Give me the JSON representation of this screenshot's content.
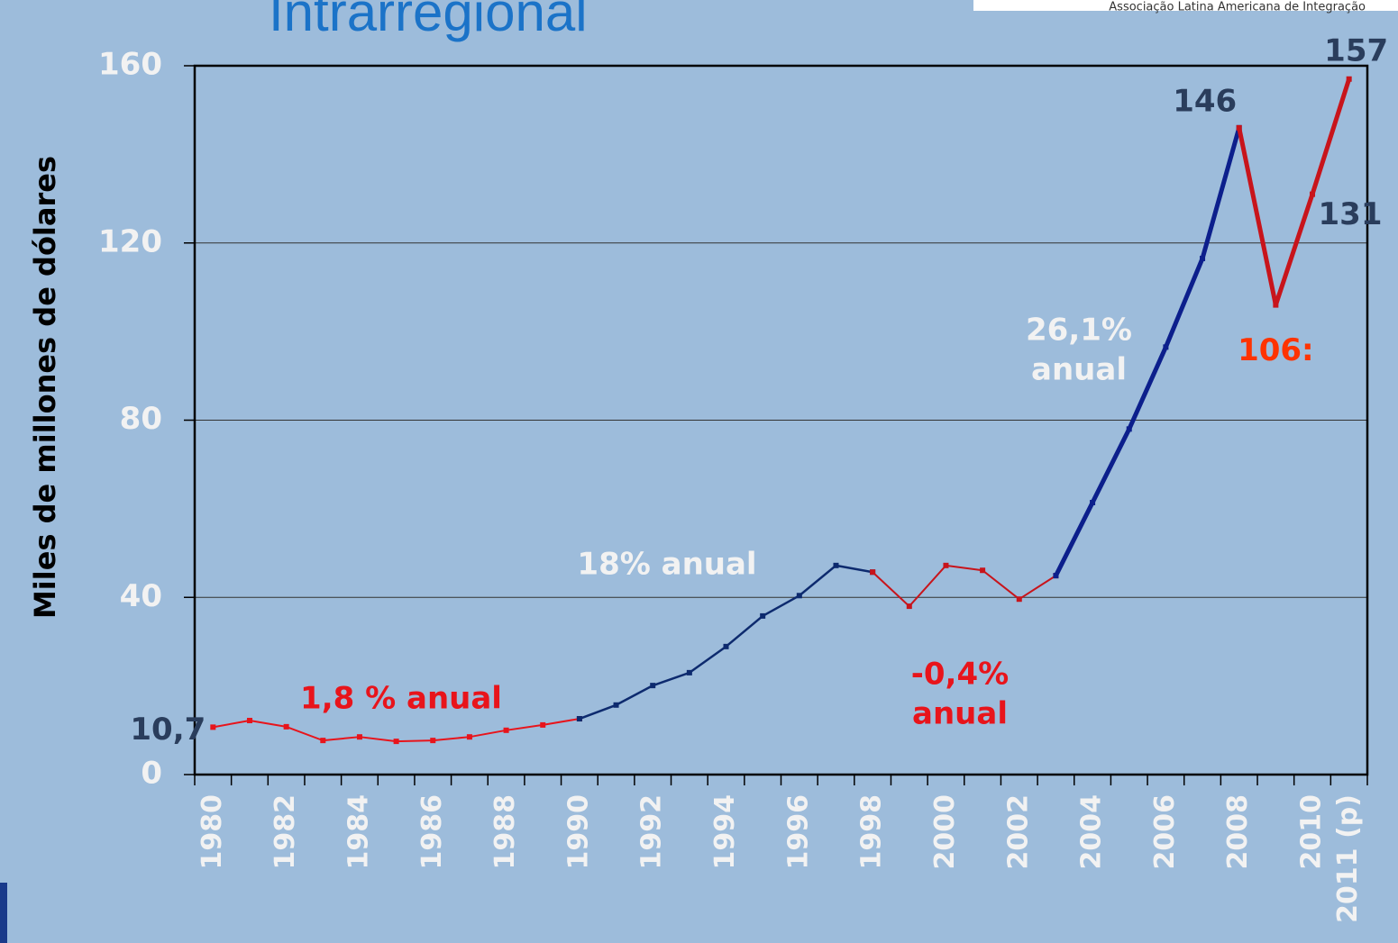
{
  "chart_data": {
    "type": "line",
    "title": "Intrarregional",
    "header_text": "Associação Latina Americana de Integração",
    "y_label": "Miles de millones de dólares",
    "categories": [
      "1980",
      null,
      "1982",
      null,
      "1984",
      null,
      "1986",
      null,
      "1988",
      null,
      "1990",
      null,
      "1992",
      null,
      "1994",
      null,
      "1996",
      null,
      "1998",
      null,
      "2000",
      null,
      "2002",
      null,
      "2004",
      null,
      "2006",
      null,
      "2008",
      null,
      "2010",
      "2011 (p)"
    ],
    "series": [
      {
        "color": "#e8141b",
        "width": 2,
        "values": [
          10.7,
          12.2,
          10.8,
          7.7,
          8.5,
          7.5,
          7.7,
          8.5,
          10,
          11.2,
          12.6,
          null,
          null,
          null,
          null,
          null,
          null,
          null,
          null,
          null,
          null,
          null,
          null,
          null,
          null,
          null,
          null,
          null,
          null,
          null,
          null,
          null
        ],
        "value_labels": [
          "10,7",
          null,
          null,
          null,
          null,
          null,
          null,
          null,
          null,
          null,
          null,
          null,
          null,
          null,
          null,
          null,
          null,
          null,
          null,
          null,
          null,
          null,
          null,
          null,
          null,
          null,
          null,
          null,
          null,
          null,
          null,
          null
        ]
      },
      {
        "color": "#0d2a6e",
        "width": 2.5,
        "values": [
          null,
          null,
          null,
          null,
          null,
          null,
          null,
          null,
          null,
          null,
          12.6,
          15.7,
          20.1,
          23,
          28.9,
          35.8,
          40.4,
          47.2,
          45.7,
          null,
          null,
          null,
          null,
          null,
          null,
          null,
          null,
          null,
          null,
          null,
          null,
          null
        ]
      },
      {
        "color": "#c8141b",
        "width": 2,
        "values": [
          null,
          null,
          null,
          null,
          null,
          null,
          null,
          null,
          null,
          null,
          null,
          null,
          null,
          null,
          null,
          null,
          null,
          null,
          45.7,
          38,
          47.2,
          46.1,
          39.6,
          44.9,
          null,
          null,
          null,
          null,
          null,
          null,
          null,
          null
        ]
      },
      {
        "color": "#0c1f8c",
        "width": 5,
        "values": [
          null,
          null,
          null,
          null,
          null,
          null,
          null,
          null,
          null,
          null,
          null,
          null,
          null,
          null,
          null,
          null,
          null,
          null,
          null,
          null,
          null,
          null,
          null,
          44.9,
          61.4,
          78,
          96.5,
          116.5,
          146,
          null,
          null,
          null
        ]
      },
      {
        "color": "#c8141b",
        "width": 5,
        "values": [
          null,
          null,
          null,
          null,
          null,
          null,
          null,
          null,
          null,
          null,
          null,
          null,
          null,
          null,
          null,
          null,
          null,
          null,
          null,
          null,
          null,
          null,
          null,
          null,
          null,
          null,
          null,
          null,
          146,
          106,
          131,
          157
        ],
        "value_labels": [
          null,
          null,
          null,
          null,
          null,
          null,
          null,
          null,
          null,
          null,
          null,
          null,
          null,
          null,
          null,
          null,
          null,
          null,
          null,
          null,
          null,
          null,
          null,
          null,
          null,
          null,
          null,
          null,
          "146",
          "106:",
          "131",
          "157"
        ]
      }
    ],
    "annotations": [
      {
        "lines": [
          "1,8 % anual"
        ],
        "color": "#e8141b"
      },
      {
        "lines": [
          "18% anual"
        ],
        "color": "#f2f2f2"
      },
      {
        "lines": [
          "-0,4%",
          "anual"
        ],
        "color": "#e8141b"
      },
      {
        "lines": [
          "26,1%",
          "anual"
        ],
        "color": "#f2f2f2"
      }
    ],
    "ylim": [
      0,
      160
    ],
    "yticks": [
      0,
      40,
      80,
      120,
      160
    ],
    "grid": true
  }
}
